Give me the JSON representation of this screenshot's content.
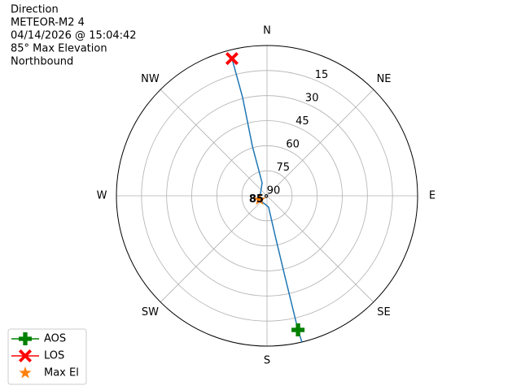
{
  "chart_data": {
    "type": "polar",
    "info": [
      "Direction",
      "METEOR-M2 4",
      "04/14/2026 @ 15:04:42",
      "85° Max Elevation",
      "Northbound"
    ],
    "rlim": [
      0,
      90
    ],
    "rticks": [
      15,
      30,
      45,
      60,
      75,
      90
    ],
    "thetaticks": [
      {
        "value": 0,
        "label": "N"
      },
      {
        "value": 45,
        "label": "NE"
      },
      {
        "value": 90,
        "label": "E"
      },
      {
        "value": 135,
        "label": "SE"
      },
      {
        "value": 180,
        "label": "S"
      },
      {
        "value": 225,
        "label": "SW"
      },
      {
        "value": 270,
        "label": "W"
      },
      {
        "value": 315,
        "label": "NW"
      }
    ],
    "grid": true,
    "track": {
      "color": "#1f77b4",
      "az": [
        166.6,
        167,
        167.5,
        168.5,
        172,
        243,
        339.4,
        343.6,
        346.1,
        345.7
      ],
      "el": [
        0,
        7.6,
        40.7,
        65.7,
        83.1,
        85,
        81.7,
        59.1,
        29.3,
        5.2
      ]
    },
    "series": [
      {
        "name": "AOS",
        "color": "#008000",
        "marker": "plus",
        "az": [
          167
        ],
        "el": [
          7.6
        ]
      },
      {
        "name": "LOS",
        "color": "#ff0000",
        "marker": "x",
        "az": [
          345.7
        ],
        "el": [
          5.2
        ]
      },
      {
        "name": "Max El",
        "color": "#ff7f0e",
        "marker": "star",
        "az": [
          243
        ],
        "el": [
          85
        ]
      }
    ],
    "annotation": "85°",
    "legend": "lower left"
  }
}
